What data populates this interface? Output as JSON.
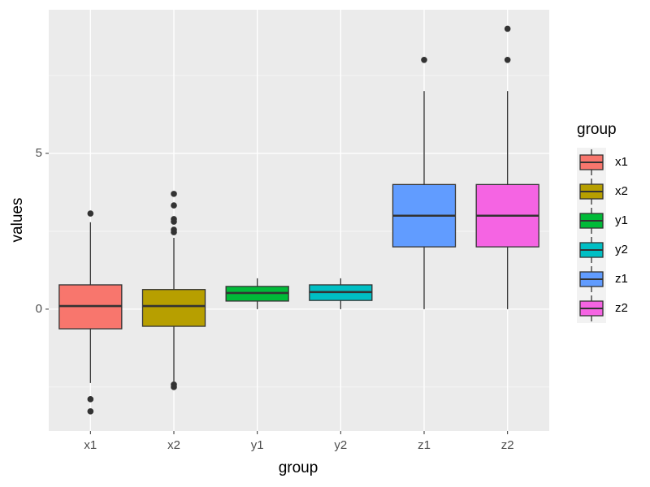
{
  "chart_data": {
    "type": "boxplot",
    "xlabel": "group",
    "ylabel": "values",
    "legend_title": "group",
    "categories": [
      "x1",
      "x2",
      "y1",
      "y2",
      "z1",
      "z2"
    ],
    "colors": [
      "#F8766D",
      "#B79F00",
      "#00BA38",
      "#00BFC4",
      "#619CFF",
      "#F564E3"
    ],
    "boxes": [
      {
        "min": -2.37,
        "q1": -0.63,
        "median": 0.1,
        "q3": 0.78,
        "max": 2.79,
        "outliers": [
          3.07,
          -2.89,
          -3.28
        ]
      },
      {
        "min": -2.32,
        "q1": -0.55,
        "median": 0.1,
        "q3": 0.63,
        "max": 2.29,
        "outliers": [
          3.7,
          3.33,
          2.89,
          2.81,
          2.55,
          2.47,
          -2.42,
          -2.5
        ]
      },
      {
        "min": 0,
        "q1": 0.26,
        "median": 0.52,
        "q3": 0.73,
        "max": 0.99,
        "outliers": []
      },
      {
        "min": 0,
        "q1": 0.28,
        "median": 0.55,
        "q3": 0.78,
        "max": 0.99,
        "outliers": []
      },
      {
        "min": 0,
        "q1": 2,
        "median": 3,
        "q3": 4,
        "max": 7,
        "outliers": [
          8
        ]
      },
      {
        "min": 0,
        "q1": 2,
        "median": 3,
        "q3": 4,
        "max": 7,
        "outliers": [
          8,
          9
        ]
      }
    ],
    "ylim": [
      -3.91,
      9.61
    ],
    "yticks": [
      0,
      5
    ],
    "minor_yticks": [
      -2.5,
      2.5,
      7.5
    ],
    "grid": true,
    "legend": "right"
  }
}
